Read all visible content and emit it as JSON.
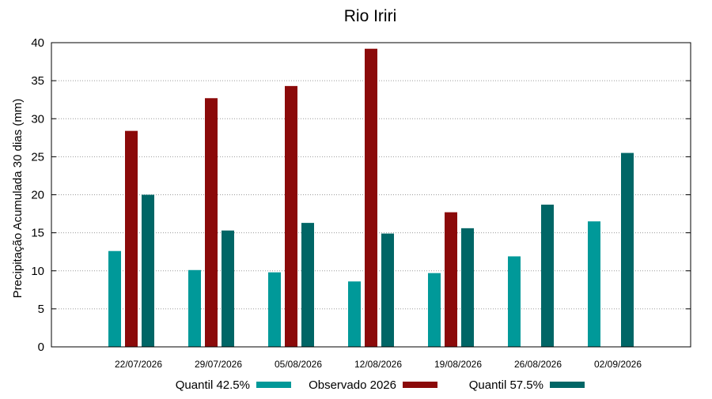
{
  "chart_data": {
    "type": "bar",
    "title": "Rio Iriri",
    "xlabel": "",
    "ylabel": "Precipitação Acumulada 30 dias (mm)",
    "ylim": [
      0,
      40
    ],
    "yticks": [
      0,
      5,
      10,
      15,
      20,
      25,
      30,
      35,
      40
    ],
    "grid": "horizontal dotted",
    "legend_position": "bottom",
    "categories": [
      "22/07/2026",
      "29/07/2026",
      "05/08/2026",
      "12/08/2026",
      "19/08/2026",
      "26/08/2026",
      "02/09/2026"
    ],
    "series": [
      {
        "name": "Quantil 42.5%",
        "color": "#009999",
        "values": [
          12.6,
          10.1,
          9.8,
          8.6,
          9.7,
          11.9,
          16.5
        ]
      },
      {
        "name": "Observado 2026",
        "color": "#8b0a0a",
        "values": [
          28.4,
          32.7,
          34.3,
          39.2,
          17.7,
          null,
          null
        ]
      },
      {
        "name": "Quantil 57.5%",
        "color": "#006666",
        "values": [
          20.0,
          15.3,
          16.3,
          14.9,
          15.6,
          18.7,
          25.5
        ]
      }
    ]
  }
}
